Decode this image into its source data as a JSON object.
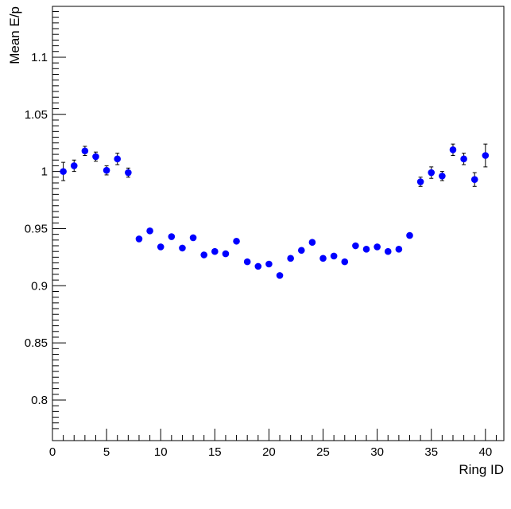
{
  "chart_data": {
    "type": "scatter",
    "title": "",
    "xlabel": "Ring ID",
    "ylabel": "Mean E/p",
    "xlim": [
      0,
      41.7
    ],
    "ylim": [
      0.7645,
      1.1445
    ],
    "grid": false,
    "x_ticks": [
      0,
      5,
      10,
      15,
      20,
      25,
      30,
      35,
      40
    ],
    "y_ticks": [
      0.8,
      0.85,
      0.9,
      0.95,
      1,
      1.05,
      1.1
    ],
    "x_tick_labels": [
      "0",
      "5",
      "10",
      "15",
      "20",
      "25",
      "30",
      "35",
      "40"
    ],
    "y_tick_labels": [
      "0.8",
      "0.85",
      "0.9",
      "0.95",
      "1",
      "1.05",
      "1.1"
    ],
    "marker_color": "#0000ff",
    "series": [
      {
        "x": [
          1,
          2,
          3,
          4,
          5,
          6,
          7,
          8,
          9,
          10,
          11,
          12,
          13,
          14,
          15,
          16,
          17,
          18,
          19,
          20,
          21,
          22,
          23,
          24,
          25,
          26,
          27,
          28,
          29,
          30,
          31,
          32,
          33,
          34,
          35,
          36,
          37,
          38,
          39,
          40
        ],
        "y": [
          1.0,
          1.005,
          1.018,
          1.013,
          1.001,
          1.011,
          0.999,
          0.941,
          0.948,
          0.934,
          0.943,
          0.933,
          0.942,
          0.927,
          0.93,
          0.928,
          0.939,
          0.921,
          0.917,
          0.919,
          0.909,
          0.924,
          0.931,
          0.938,
          0.924,
          0.926,
          0.921,
          0.935,
          0.932,
          0.934,
          0.93,
          0.932,
          0.944,
          0.991,
          0.999,
          0.996,
          1.019,
          1.011,
          0.993,
          1.014
        ],
        "yerr": [
          0.008,
          0.005,
          0.004,
          0.004,
          0.004,
          0.005,
          0.004,
          0.002,
          0.002,
          0.002,
          0.002,
          0.002,
          0.002,
          0.002,
          0.002,
          0.002,
          0.002,
          0.002,
          0.002,
          0.002,
          0.002,
          0.002,
          0.002,
          0.002,
          0.002,
          0.002,
          0.002,
          0.002,
          0.002,
          0.002,
          0.002,
          0.002,
          0.002,
          0.004,
          0.005,
          0.004,
          0.005,
          0.005,
          0.006,
          0.01
        ]
      }
    ]
  }
}
